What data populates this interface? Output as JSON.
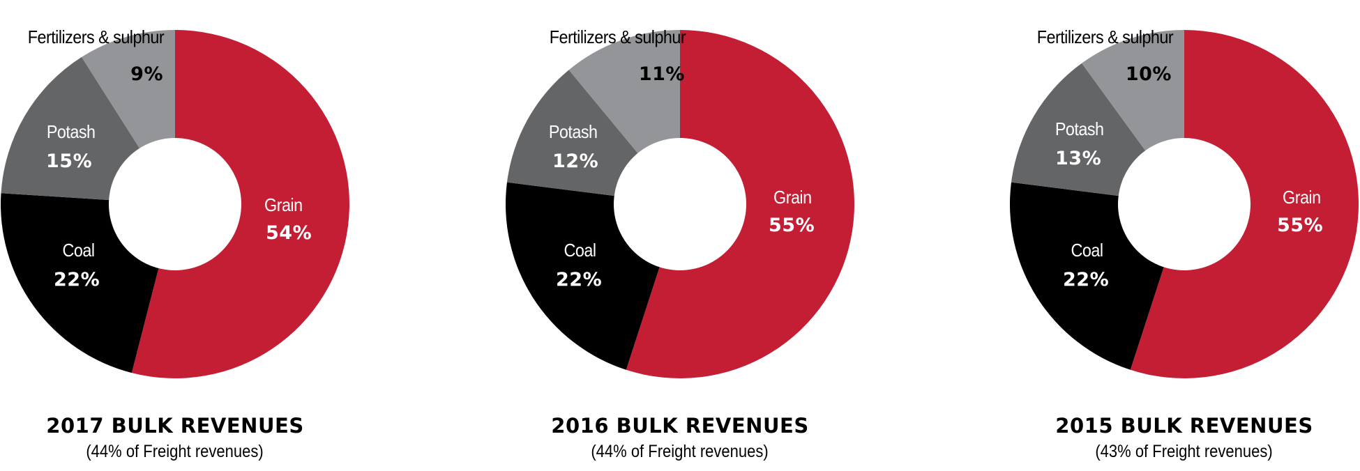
{
  "colors": {
    "grain": "#c41e35",
    "coal": "#000000",
    "potash": "#646567",
    "fertilizers": "#939598",
    "background": "#ffffff"
  },
  "chart_data": [
    {
      "type": "pie",
      "subtype": "donut",
      "title": "2017 BULK REVENUES",
      "subtitle": "(44% of Freight revenues)",
      "categories": [
        "Grain",
        "Coal",
        "Potash",
        "Fertilizers & sulphur"
      ],
      "values": [
        54,
        22,
        15,
        9
      ],
      "labels": [
        "54%",
        "22%",
        "15%",
        "9%"
      ],
      "unit": "%"
    },
    {
      "type": "pie",
      "subtype": "donut",
      "title": "2016 BULK REVENUES",
      "subtitle": "(44% of Freight revenues)",
      "categories": [
        "Grain",
        "Coal",
        "Potash",
        "Fertilizers & sulphur"
      ],
      "values": [
        55,
        22,
        12,
        11
      ],
      "labels": [
        "55%",
        "22%",
        "12%",
        "11%"
      ],
      "unit": "%"
    },
    {
      "type": "pie",
      "subtype": "donut",
      "title": "2015 BULK REVENUES",
      "subtitle": "(43% of Freight revenues)",
      "categories": [
        "Grain",
        "Coal",
        "Potash",
        "Fertilizers & sulphur"
      ],
      "values": [
        55,
        22,
        13,
        10
      ],
      "labels": [
        "55%",
        "22%",
        "13%",
        "10%"
      ],
      "unit": "%"
    }
  ]
}
